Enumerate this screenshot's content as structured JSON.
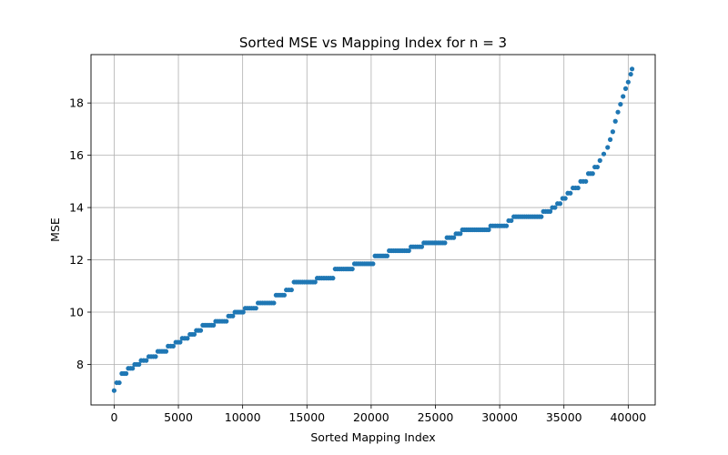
{
  "chart_data": {
    "type": "scatter",
    "title": "Sorted MSE vs Mapping Index for n = 3",
    "xlabel": "Sorted Mapping Index",
    "ylabel": "MSE",
    "xlim": [
      -1800,
      42100
    ],
    "ylim": [
      6.45,
      19.85
    ],
    "xticks": [
      0,
      5000,
      10000,
      15000,
      20000,
      25000,
      30000,
      35000,
      40000
    ],
    "yticks": [
      8,
      10,
      12,
      14,
      16,
      18
    ],
    "xtick_labels": [
      "0",
      "5000",
      "10000",
      "15000",
      "20000",
      "25000",
      "30000",
      "35000",
      "40000"
    ],
    "ytick_labels": [
      "8",
      "10",
      "12",
      "14",
      "16",
      "18"
    ],
    "grid": true,
    "legend": "none",
    "marker": "circle",
    "colors": {
      "series": "#1f77b4",
      "grid": "#b0b0b0",
      "axis": "#000000"
    },
    "series": [
      {
        "x": [
          0,
          200,
          600,
          1100,
          1600,
          2100,
          2700,
          3400,
          4200,
          4800,
          5300,
          5900,
          6400,
          6900,
          7900,
          8900,
          9400,
          10200,
          11200,
          12600,
          13400,
          14000,
          15800,
          17200,
          18700,
          20300,
          21400,
          23100,
          24100,
          25900,
          26600,
          27100,
          29300,
          30700,
          31100,
          33400,
          34100,
          34500,
          34900,
          35300,
          35700,
          36300,
          36900,
          37400,
          37800,
          38100,
          38400,
          38600,
          38800,
          39000,
          39200,
          39400,
          39600,
          39800,
          40000,
          40200,
          40300
        ],
        "y": [
          7.0,
          7.3,
          7.65,
          7.85,
          8.0,
          8.15,
          8.3,
          8.5,
          8.7,
          8.85,
          9.0,
          9.15,
          9.3,
          9.5,
          9.65,
          9.85,
          10.0,
          10.15,
          10.35,
          10.65,
          10.85,
          11.15,
          11.3,
          11.65,
          11.85,
          12.15,
          12.35,
          12.5,
          12.65,
          12.85,
          13.0,
          13.15,
          13.3,
          13.5,
          13.65,
          13.85,
          14.0,
          14.15,
          14.35,
          14.55,
          14.75,
          15.0,
          15.3,
          15.55,
          15.8,
          16.05,
          16.3,
          16.6,
          16.9,
          17.3,
          17.65,
          17.95,
          18.25,
          18.55,
          18.8,
          19.1,
          19.3
        ]
      }
    ]
  }
}
